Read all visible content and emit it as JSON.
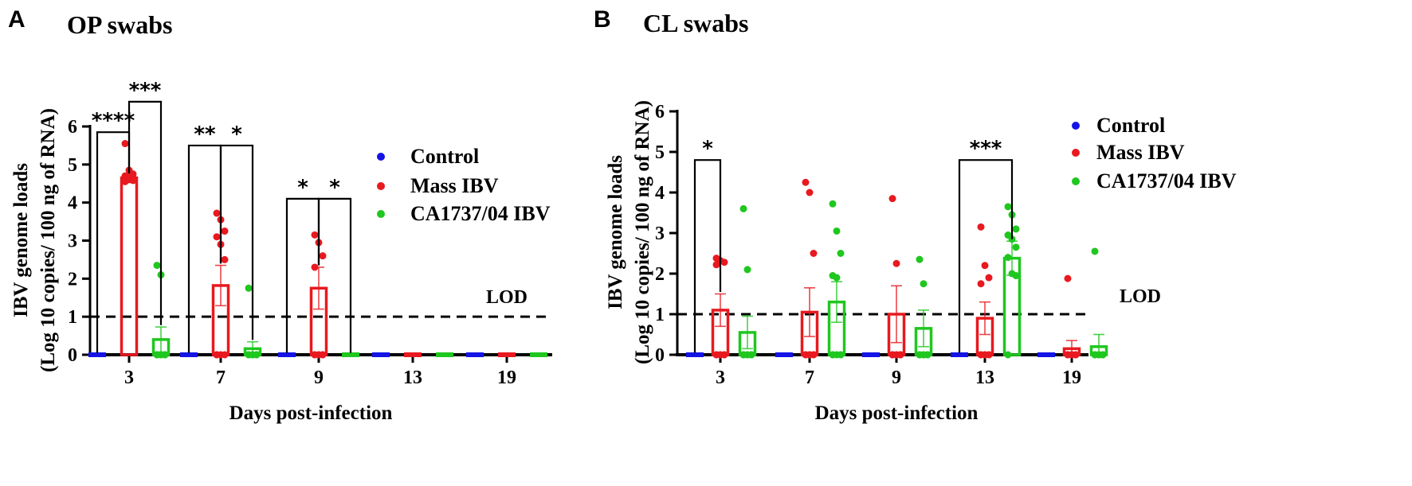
{
  "colors": {
    "control": "#1414e6",
    "mass": "#e8191f",
    "ca": "#1fc71f",
    "axis": "#000000"
  },
  "chart_data": [
    {
      "type": "bar",
      "panel": "A",
      "title": "OP swabs",
      "xlabel": "Days post-infection",
      "ylabel_line1": "IBV genome loads",
      "ylabel_line2": "(Log 10 copies/ 100 ng of RNA)",
      "ylim": [
        0,
        6
      ],
      "yticks": [
        "0",
        "1",
        "2",
        "3",
        "4",
        "5",
        "6"
      ],
      "categories": [
        "3",
        "7",
        "9",
        "13",
        "19"
      ],
      "lod": {
        "value": 1,
        "label": "LOD"
      },
      "legend": [
        "Control",
        "Mass IBV",
        "CA1737/04 IBV"
      ],
      "legend_position": "right",
      "series": [
        {
          "name": "Control",
          "color_key": "control",
          "values": [
            0,
            0,
            0,
            0,
            0
          ],
          "errors": [
            0,
            0,
            0,
            0,
            0
          ],
          "points": [
            [],
            [],
            [],
            [],
            []
          ]
        },
        {
          "name": "Mass IBV",
          "color_key": "mass",
          "values": [
            4.65,
            1.82,
            1.75,
            0,
            0
          ],
          "errors": [
            0.07,
            0.53,
            0.55,
            0,
            0
          ],
          "points": [
            [
              5.55,
              4.85,
              4.75,
              4.7,
              4.68,
              4.65,
              4.62,
              4.6,
              4.58,
              4.55
            ],
            [
              3.72,
              3.55,
              3.25,
              3.1,
              2.9,
              2.5,
              0,
              0,
              0,
              0
            ],
            [
              3.15,
              2.95,
              2.6,
              2.3,
              0,
              0,
              0,
              0,
              0,
              0
            ],
            [],
            []
          ]
        },
        {
          "name": "CA1737/04 IBV",
          "color_key": "ca",
          "values": [
            0.4,
            0.16,
            0,
            0,
            0
          ],
          "errors": [
            0.33,
            0.18,
            0,
            0,
            0
          ],
          "points": [
            [
              2.35,
              2.1,
              0,
              0,
              0,
              0,
              0,
              0,
              0,
              0
            ],
            [
              1.75,
              0,
              0,
              0,
              0,
              0,
              0,
              0,
              0,
              0
            ],
            [],
            [],
            []
          ]
        }
      ],
      "significance": [
        {
          "label": "****",
          "day_index": 0,
          "from": "control",
          "to": "mass",
          "y": 5.85
        },
        {
          "label": "***",
          "day_index": 0,
          "from": "mass",
          "to": "ca",
          "y": 6.65
        },
        {
          "label": "**",
          "day_index": 1,
          "from": "control",
          "to": "mass",
          "y": 5.5
        },
        {
          "label": "*",
          "day_index": 1,
          "from": "mass",
          "to": "ca",
          "y": 5.5
        },
        {
          "label": "*",
          "day_index": 2,
          "from": "control",
          "to": "mass",
          "y": 4.1
        },
        {
          "label": "*",
          "day_index": 2,
          "from": "mass",
          "to": "ca",
          "y": 4.1
        }
      ]
    },
    {
      "type": "bar",
      "panel": "B",
      "title": "CL swabs",
      "xlabel": "Days post-infection",
      "ylabel_line1": "IBV genome loads",
      "ylabel_line2": "(Log 10 copies/ 100 ng of RNA)",
      "ylim": [
        0,
        6
      ],
      "yticks": [
        "0",
        "1",
        "2",
        "3",
        "4",
        "5",
        "6"
      ],
      "categories": [
        "3",
        "7",
        "9",
        "13",
        "19"
      ],
      "lod": {
        "value": 1,
        "label": "LOD"
      },
      "legend": [
        "Control",
        "Mass IBV",
        "CA1737/04 IBV"
      ],
      "legend_position": "top-right",
      "series": [
        {
          "name": "Control",
          "color_key": "control",
          "values": [
            0,
            0,
            0,
            0,
            0
          ],
          "errors": [
            0,
            0,
            0,
            0,
            0
          ],
          "points": [
            [],
            [],
            [],
            [],
            []
          ]
        },
        {
          "name": "Mass IBV",
          "color_key": "mass",
          "values": [
            1.1,
            1.05,
            1.0,
            0.9,
            0.15
          ],
          "errors": [
            0.4,
            0.6,
            0.7,
            0.4,
            0.2
          ],
          "points": [
            [
              2.38,
              2.32,
              2.28,
              2.22,
              0,
              0,
              0,
              0,
              0,
              0
            ],
            [
              4.25,
              4.0,
              2.5,
              0,
              0,
              0,
              0,
              0,
              0,
              0
            ],
            [
              3.85,
              2.25,
              0,
              0,
              0,
              0,
              0,
              0,
              0,
              0
            ],
            [
              3.15,
              2.2,
              1.9,
              1.75,
              0,
              0,
              0,
              0,
              0,
              0
            ],
            [
              1.88,
              0,
              0,
              0,
              0,
              0,
              0,
              0,
              0,
              0
            ]
          ]
        },
        {
          "name": "CA1737/04 IBV",
          "color_key": "ca",
          "values": [
            0.55,
            1.3,
            0.65,
            2.38,
            0.2
          ],
          "errors": [
            0.4,
            0.5,
            0.45,
            0.42,
            0.3
          ],
          "points": [
            [
              3.6,
              2.1,
              0,
              0,
              0,
              0,
              0,
              0,
              0,
              0
            ],
            [
              3.72,
              3.05,
              2.5,
              1.95,
              1.9,
              0,
              0,
              0,
              0,
              0
            ],
            [
              2.35,
              1.75,
              0,
              0,
              0,
              0,
              0,
              0,
              0,
              0
            ],
            [
              3.65,
              3.45,
              3.1,
              2.95,
              2.85,
              2.65,
              2.4,
              2.0,
              1.95,
              0
            ],
            [
              2.55,
              0,
              0,
              0,
              0,
              0,
              0,
              0,
              0,
              0
            ]
          ]
        }
      ],
      "significance": [
        {
          "label": "*",
          "day_index": 0,
          "from": "control",
          "to": "mass",
          "y": 4.8
        },
        {
          "label": "***",
          "day_index": 3,
          "from": "control",
          "to": "ca",
          "y": 4.8
        }
      ]
    }
  ]
}
